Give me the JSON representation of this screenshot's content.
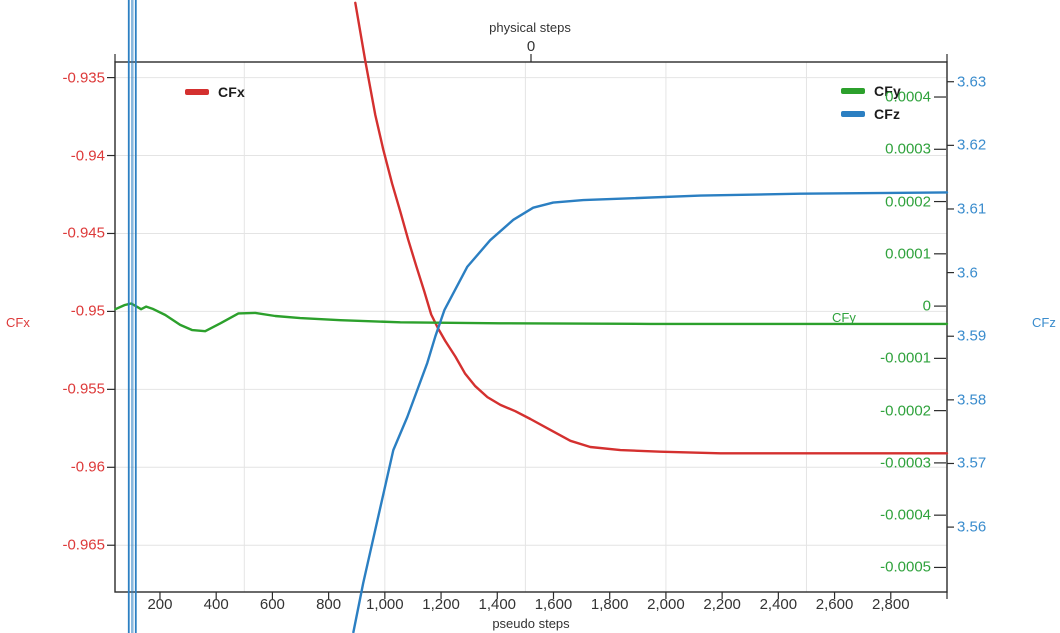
{
  "chart_data": {
    "type": "line",
    "x_axis": {
      "label": "pseudo steps",
      "range": [
        40,
        3000
      ],
      "color": "#333333",
      "ticks": [
        {
          "v": 200,
          "label": "200"
        },
        {
          "v": 400,
          "label": "400"
        },
        {
          "v": 600,
          "label": "600"
        },
        {
          "v": 800,
          "label": "800"
        },
        {
          "v": 1000,
          "label": "1,000"
        },
        {
          "v": 1200,
          "label": "1,200"
        },
        {
          "v": 1400,
          "label": "1,400"
        },
        {
          "v": 1600,
          "label": "1,600"
        },
        {
          "v": 1800,
          "label": "1,800"
        },
        {
          "v": 2000,
          "label": "2,000"
        },
        {
          "v": 2200,
          "label": "2,200"
        },
        {
          "v": 2400,
          "label": "2,400"
        },
        {
          "v": 2600,
          "label": "2,600"
        },
        {
          "v": 2800,
          "label": "2,800"
        }
      ],
      "gridlines": [
        500,
        1000,
        1500,
        2000,
        2500,
        3000
      ]
    },
    "top_axis": {
      "label": "physical steps",
      "color": "#333333",
      "ticks": [
        {
          "label": "0"
        }
      ]
    },
    "y_axes": {
      "cfx": {
        "label": "CFx",
        "side": "left",
        "color": "#dd3a3a",
        "line_color": "#d4302f",
        "range": [
          -0.968,
          -0.934
        ],
        "ticks": [
          {
            "v": -0.935,
            "label": "-0.935"
          },
          {
            "v": -0.94,
            "label": "-0.94"
          },
          {
            "v": -0.945,
            "label": "-0.945"
          },
          {
            "v": -0.95,
            "label": "-0.95"
          },
          {
            "v": -0.955,
            "label": "-0.955"
          },
          {
            "v": -0.96,
            "label": "-0.96"
          },
          {
            "v": -0.965,
            "label": "-0.965"
          }
        ],
        "gridlines_from_ticks": true
      },
      "cfy": {
        "label": "CFy",
        "side": "right-inside",
        "color": "#2fa23c",
        "line_color": "#2ca02c",
        "range": [
          -0.000547,
          0.000467
        ],
        "ticks": [
          {
            "v": 0.0004,
            "label": "0.0004"
          },
          {
            "v": 0.0003,
            "label": "0.0003"
          },
          {
            "v": 0.0002,
            "label": "0.0002"
          },
          {
            "v": 0.0001,
            "label": "0.0001"
          },
          {
            "v": 0,
            "label": "0"
          },
          {
            "v": -0.0001,
            "label": "-0.0001"
          },
          {
            "v": -0.0002,
            "label": "-0.0002"
          },
          {
            "v": -0.0003,
            "label": "-0.0003"
          },
          {
            "v": -0.0004,
            "label": "-0.0004"
          },
          {
            "v": -0.0005,
            "label": "-0.0005"
          }
        ]
      },
      "cfz": {
        "label": "CFz",
        "side": "right-outside",
        "color": "#3a8ccd",
        "line_color": "#2b7fc2",
        "range": [
          3.5498,
          3.6331
        ],
        "ticks": [
          {
            "v": 3.63,
            "label": "3.63"
          },
          {
            "v": 3.62,
            "label": "3.62"
          },
          {
            "v": 3.61,
            "label": "3.61"
          },
          {
            "v": 3.6,
            "label": "3.6"
          },
          {
            "v": 3.59,
            "label": "3.59"
          },
          {
            "v": 3.58,
            "label": "3.58"
          },
          {
            "v": 3.57,
            "label": "3.57"
          },
          {
            "v": 3.56,
            "label": "3.56"
          }
        ]
      }
    },
    "series": [
      {
        "name": "CFx",
        "axis": "cfx",
        "points": [
          [
            895,
            -0.9302
          ],
          [
            930,
            -0.9339
          ],
          [
            966,
            -0.9374
          ],
          [
            994,
            -0.9396
          ],
          [
            1026,
            -0.9418
          ],
          [
            1055,
            -0.9436
          ],
          [
            1083,
            -0.9454
          ],
          [
            1112,
            -0.9471
          ],
          [
            1140,
            -0.9487
          ],
          [
            1165,
            -0.9502
          ],
          [
            1190,
            -0.9511
          ],
          [
            1215,
            -0.9519
          ],
          [
            1251,
            -0.9529
          ],
          [
            1286,
            -0.954
          ],
          [
            1322,
            -0.9548
          ],
          [
            1365,
            -0.9555
          ],
          [
            1411,
            -0.956
          ],
          [
            1464,
            -0.9564
          ],
          [
            1518,
            -0.9569
          ],
          [
            1589,
            -0.9576
          ],
          [
            1660,
            -0.9583
          ],
          [
            1731,
            -0.9587
          ],
          [
            1838,
            -0.9589
          ],
          [
            1980,
            -0.959
          ],
          [
            2194,
            -0.9591
          ],
          [
            2600,
            -0.9591
          ],
          [
            3000,
            -0.9591
          ]
        ]
      },
      {
        "name": "CFy",
        "axis": "cfy",
        "points": [
          [
            41,
            -6e-06
          ],
          [
            75,
            2e-06
          ],
          [
            98,
            5e-06
          ],
          [
            120,
            -2e-06
          ],
          [
            133,
            -6e-06
          ],
          [
            151,
            -1e-06
          ],
          [
            173,
            -5e-06
          ],
          [
            219,
            -1.7e-05
          ],
          [
            272,
            -3.6e-05
          ],
          [
            315,
            -4.6e-05
          ],
          [
            361,
            -4.8e-05
          ],
          [
            415,
            -3.3e-05
          ],
          [
            479,
            -1.4e-05
          ],
          [
            539,
            -1.3e-05
          ],
          [
            610,
            -1.9e-05
          ],
          [
            699,
            -2.3e-05
          ],
          [
            842,
            -2.7e-05
          ],
          [
            1055,
            -3.1e-05
          ],
          [
            1411,
            -3.3e-05
          ],
          [
            1945,
            -3.4e-05
          ],
          [
            3000,
            -3.4e-05
          ]
        ]
      },
      {
        "name": "CFz",
        "axis": "cfz",
        "transient_vlines": [
          89,
          114
        ],
        "points": [
          [
            888,
            3.5435
          ],
          [
            923,
            3.5512
          ],
          [
            966,
            3.5596
          ],
          [
            1002,
            3.5666
          ],
          [
            1030,
            3.5721
          ],
          [
            1080,
            3.5773
          ],
          [
            1151,
            3.5858
          ],
          [
            1180,
            3.59
          ],
          [
            1212,
            3.5941
          ],
          [
            1293,
            3.6009
          ],
          [
            1375,
            3.6051
          ],
          [
            1457,
            3.6083
          ],
          [
            1528,
            3.6102
          ],
          [
            1599,
            3.611
          ],
          [
            1706,
            3.6114
          ],
          [
            1884,
            3.6117
          ],
          [
            2123,
            3.6121
          ],
          [
            2478,
            3.6124
          ],
          [
            3000,
            3.6126
          ]
        ]
      }
    ],
    "legend": [
      {
        "label": "CFx",
        "color": "#d4302f"
      },
      {
        "label": "CFy",
        "color": "#2ca02c"
      },
      {
        "label": "CFz",
        "color": "#2b7fc2"
      }
    ]
  }
}
